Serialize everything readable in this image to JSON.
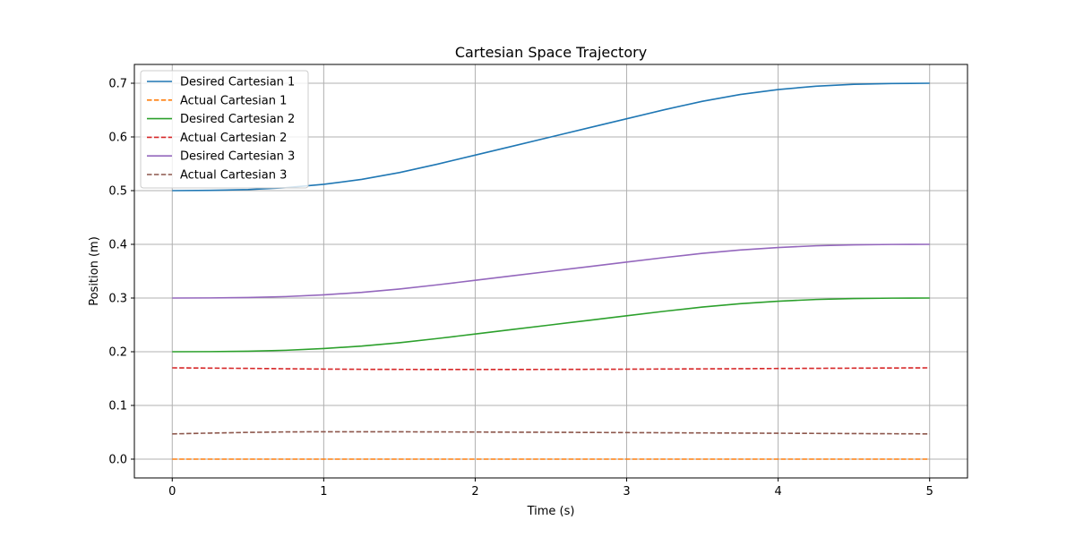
{
  "chart_data": {
    "type": "line",
    "title": "Cartesian Space Trajectory",
    "xlabel": "Time (s)",
    "ylabel": "Position (m)",
    "xlim": [
      -0.25,
      5.25
    ],
    "ylim": [
      -0.035,
      0.735
    ],
    "xticks": [
      0,
      1,
      2,
      3,
      4,
      5
    ],
    "xtick_labels": [
      "0",
      "1",
      "2",
      "3",
      "4",
      "5"
    ],
    "yticks": [
      0.0,
      0.1,
      0.2,
      0.3,
      0.4,
      0.5,
      0.6,
      0.7
    ],
    "ytick_labels": [
      "0.0",
      "0.1",
      "0.2",
      "0.3",
      "0.4",
      "0.5",
      "0.6",
      "0.7"
    ],
    "grid": true,
    "legend_position": "top-left",
    "x": [
      0,
      0.25,
      0.5,
      0.75,
      1,
      1.25,
      1.5,
      1.75,
      2,
      2.25,
      2.5,
      2.75,
      3,
      3.25,
      3.5,
      3.75,
      4,
      4.25,
      4.5,
      4.75,
      5
    ],
    "series": [
      {
        "name": "Desired Cartesian 1",
        "color": "#1f77b4",
        "style": "solid",
        "values": [
          0.5,
          0.5005,
          0.502,
          0.5055,
          0.5117,
          0.521,
          0.5336,
          0.5493,
          0.5661,
          0.583,
          0.6,
          0.617,
          0.6339,
          0.6507,
          0.6664,
          0.679,
          0.6883,
          0.6945,
          0.698,
          0.6995,
          0.7
        ]
      },
      {
        "name": "Actual Cartesian 1",
        "color": "#ff7f0e",
        "style": "dashed",
        "values": [
          0.0,
          0.0,
          0.0,
          0.0,
          0.0,
          0.0,
          0.0,
          0.0,
          0.0,
          0.0,
          0.0,
          0.0,
          0.0,
          0.0,
          0.0,
          0.0,
          0.0,
          0.0,
          0.0,
          0.0,
          0.0
        ]
      },
      {
        "name": "Desired Cartesian 2",
        "color": "#2ca02c",
        "style": "solid",
        "values": [
          0.2,
          0.2002,
          0.201,
          0.2027,
          0.2059,
          0.2105,
          0.2168,
          0.2246,
          0.233,
          0.2415,
          0.25,
          0.2585,
          0.267,
          0.2754,
          0.2832,
          0.2895,
          0.2941,
          0.2973,
          0.299,
          0.2998,
          0.3
        ]
      },
      {
        "name": "Actual Cartesian 2",
        "color": "#d62728",
        "style": "dashed",
        "values": [
          0.17,
          0.1695,
          0.169,
          0.1683,
          0.1677,
          0.1673,
          0.1671,
          0.167,
          0.167,
          0.167,
          0.1671,
          0.1673,
          0.1675,
          0.1678,
          0.1681,
          0.1684,
          0.1688,
          0.1691,
          0.1694,
          0.1697,
          0.17
        ]
      },
      {
        "name": "Desired Cartesian 3",
        "color": "#9467bd",
        "style": "solid",
        "values": [
          0.3,
          0.3002,
          0.301,
          0.3027,
          0.3059,
          0.3105,
          0.3168,
          0.3246,
          0.333,
          0.3415,
          0.35,
          0.3585,
          0.367,
          0.3754,
          0.3832,
          0.3895,
          0.3941,
          0.3973,
          0.399,
          0.3998,
          0.4
        ]
      },
      {
        "name": "Actual Cartesian 3",
        "color": "#8c564b",
        "style": "dashed",
        "values": [
          0.047,
          0.0485,
          0.0498,
          0.0507,
          0.051,
          0.051,
          0.0509,
          0.0507,
          0.0505,
          0.0502,
          0.05,
          0.0497,
          0.0494,
          0.0491,
          0.0488,
          0.0485,
          0.0482,
          0.0479,
          0.0476,
          0.0473,
          0.047
        ]
      }
    ]
  }
}
